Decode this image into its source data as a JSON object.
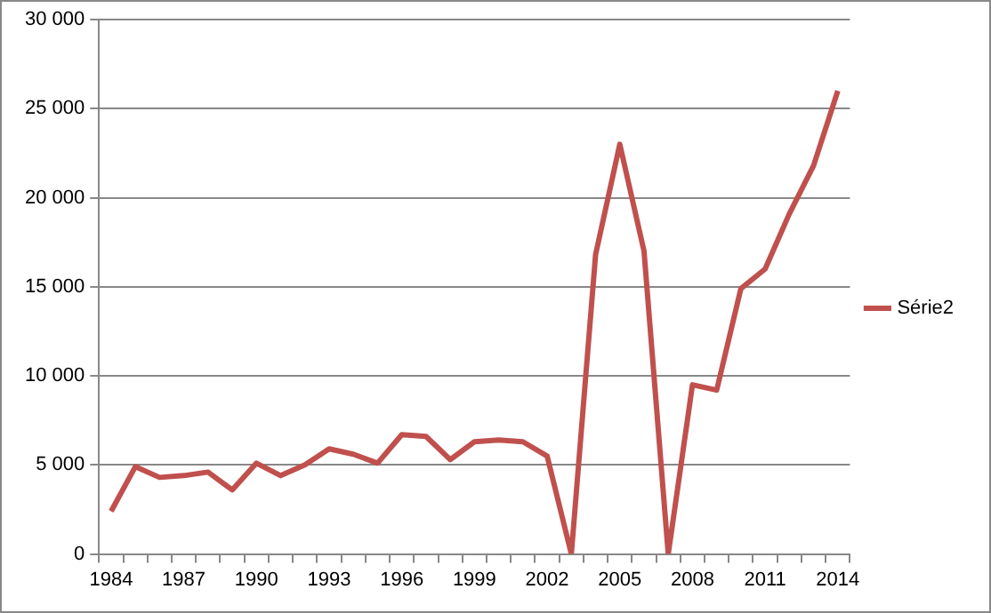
{
  "chart_data": {
    "type": "line",
    "categories": [
      "1984",
      null,
      null,
      "1987",
      null,
      null,
      "1990",
      null,
      null,
      "1993",
      null,
      null,
      "1996",
      null,
      null,
      "1999",
      null,
      null,
      "2002",
      null,
      null,
      "2005",
      null,
      null,
      "2008",
      null,
      null,
      "2011",
      null,
      null,
      "2014"
    ],
    "series": [
      {
        "name": "Série2",
        "color": "#c0504d",
        "values": [
          2400,
          4900,
          4300,
          4400,
          4600,
          3600,
          5100,
          4400,
          5000,
          5900,
          5600,
          5100,
          6700,
          6600,
          5300,
          6300,
          6400,
          6300,
          5500,
          0,
          16800,
          23000,
          17000,
          0,
          9500,
          9200,
          14900,
          16000,
          19100,
          21800,
          26000
        ]
      }
    ],
    "ylim": [
      0,
      30000
    ],
    "yticks": [
      {
        "value": 0,
        "label": "0"
      },
      {
        "value": 5000,
        "label": "5 000"
      },
      {
        "value": 10000,
        "label": "10 000"
      },
      {
        "value": 15000,
        "label": "15 000"
      },
      {
        "value": 20000,
        "label": "20 000"
      },
      {
        "value": 25000,
        "label": "25 000"
      },
      {
        "value": 30000,
        "label": "30 000"
      }
    ],
    "grid": "y",
    "legend": "right",
    "marker": "none"
  }
}
